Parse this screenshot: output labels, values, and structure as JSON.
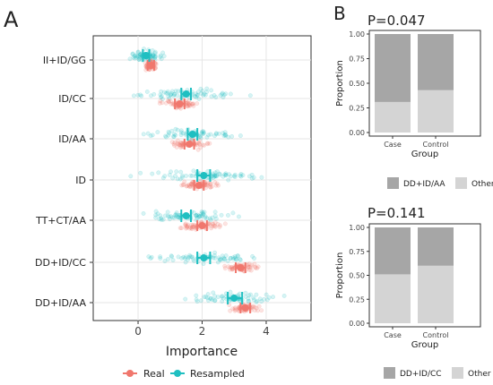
{
  "panel_a": {
    "label": "A",
    "xlabel": "Importance",
    "x_ticks": [
      "0",
      "2",
      "4"
    ],
    "legend": {
      "real": "Real",
      "resampled": "Resampled"
    }
  },
  "panel_b": {
    "label": "B"
  },
  "colors": {
    "real": "#f0776d",
    "resampled": "#1fbfc1",
    "dark_bar": "#a6a6a6",
    "light_bar": "#d4d4d4",
    "grid": "#e6e6e6",
    "axis": "#333333"
  },
  "chart_data": [
    {
      "type": "scatter",
      "title": "",
      "xlabel": "Importance",
      "xlim": [
        -1.4,
        5.4
      ],
      "x_ticks": [
        0,
        2,
        4
      ],
      "grid": true,
      "legend_position": "bottom",
      "categories": [
        "II+ID/GG",
        "ID/CC",
        "ID/AA",
        "ID",
        "TT+CT/AA",
        "DD+ID/CC",
        "DD+ID/AA"
      ],
      "series": [
        {
          "name": "Real",
          "mean": [
            0.4,
            1.3,
            1.6,
            1.9,
            2.0,
            3.2,
            3.35
          ],
          "ci_low": [
            0.3,
            1.15,
            1.45,
            1.75,
            1.85,
            3.05,
            3.2
          ],
          "ci_high": [
            0.5,
            1.45,
            1.75,
            2.05,
            2.15,
            3.35,
            3.5
          ]
        },
        {
          "name": "Resampled",
          "mean": [
            0.25,
            1.5,
            1.7,
            2.05,
            1.5,
            2.05,
            3.0
          ],
          "ci_low": [
            0.15,
            1.35,
            1.55,
            1.85,
            1.35,
            1.85,
            2.8
          ],
          "ci_high": [
            0.35,
            1.65,
            1.85,
            2.25,
            1.65,
            2.25,
            3.25
          ]
        }
      ]
    },
    {
      "type": "bar",
      "stacked": true,
      "title": "P=0.047",
      "xlabel": "Group",
      "ylabel": "Proportion",
      "categories": [
        "Case",
        "Control"
      ],
      "ylim": [
        0,
        1
      ],
      "y_ticks": [
        "0.00",
        "0.25",
        "0.50",
        "0.75",
        "1.00"
      ],
      "series": [
        {
          "name": "Other",
          "values": [
            0.31,
            0.43
          ]
        },
        {
          "name": "DD+ID/AA",
          "values": [
            0.69,
            0.57
          ]
        }
      ],
      "legend_position": "bottom"
    },
    {
      "type": "bar",
      "stacked": true,
      "title": "P=0.141",
      "xlabel": "Group",
      "ylabel": "Proportion",
      "categories": [
        "Case",
        "Control"
      ],
      "ylim": [
        0,
        1
      ],
      "y_ticks": [
        "0.00",
        "0.25",
        "0.50",
        "0.75",
        "1.00"
      ],
      "series": [
        {
          "name": "Other",
          "values": [
            0.51,
            0.6
          ]
        },
        {
          "name": "DD+ID/CC",
          "values": [
            0.49,
            0.4
          ]
        }
      ],
      "legend_position": "bottom"
    }
  ]
}
